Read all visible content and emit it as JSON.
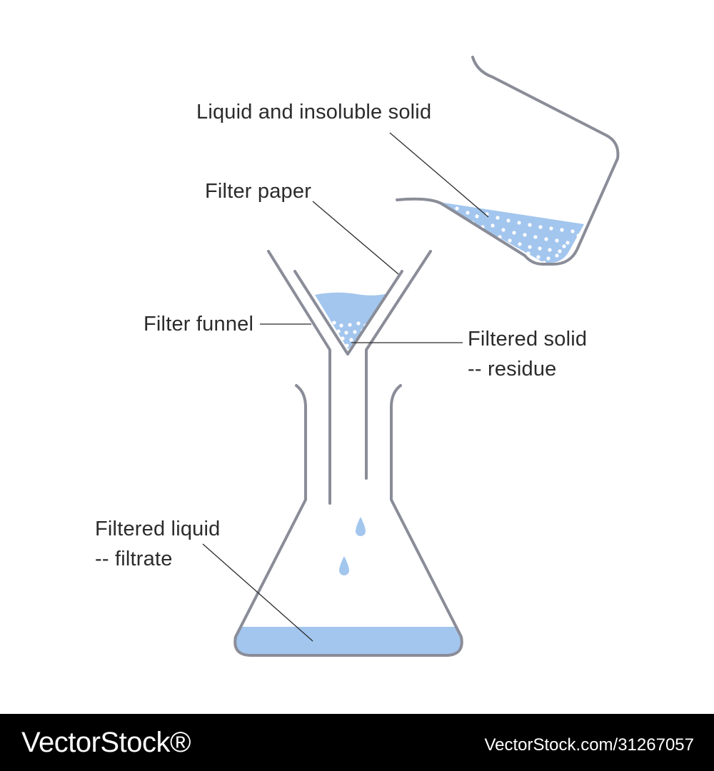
{
  "diagram": {
    "labels": {
      "liquid_and_solid": "Liquid and insoluble solid",
      "filter_paper": "Filter paper",
      "filter_funnel": "Filter funnel",
      "filtered_solid_line1": "Filtered solid",
      "filtered_solid_line2": "-- residue",
      "filtered_liquid_line1": "Filtered liquid",
      "filtered_liquid_line2": "-- filtrate"
    },
    "colors": {
      "outline": "#8a8d98",
      "liquid": "#a3c6ee",
      "particle": "#ffffff",
      "leader": "#2b2b2b",
      "text": "#2b2b2b"
    }
  },
  "footer": {
    "brand": "VectorStock®",
    "image_id": "VectorStock.com/31267057"
  }
}
